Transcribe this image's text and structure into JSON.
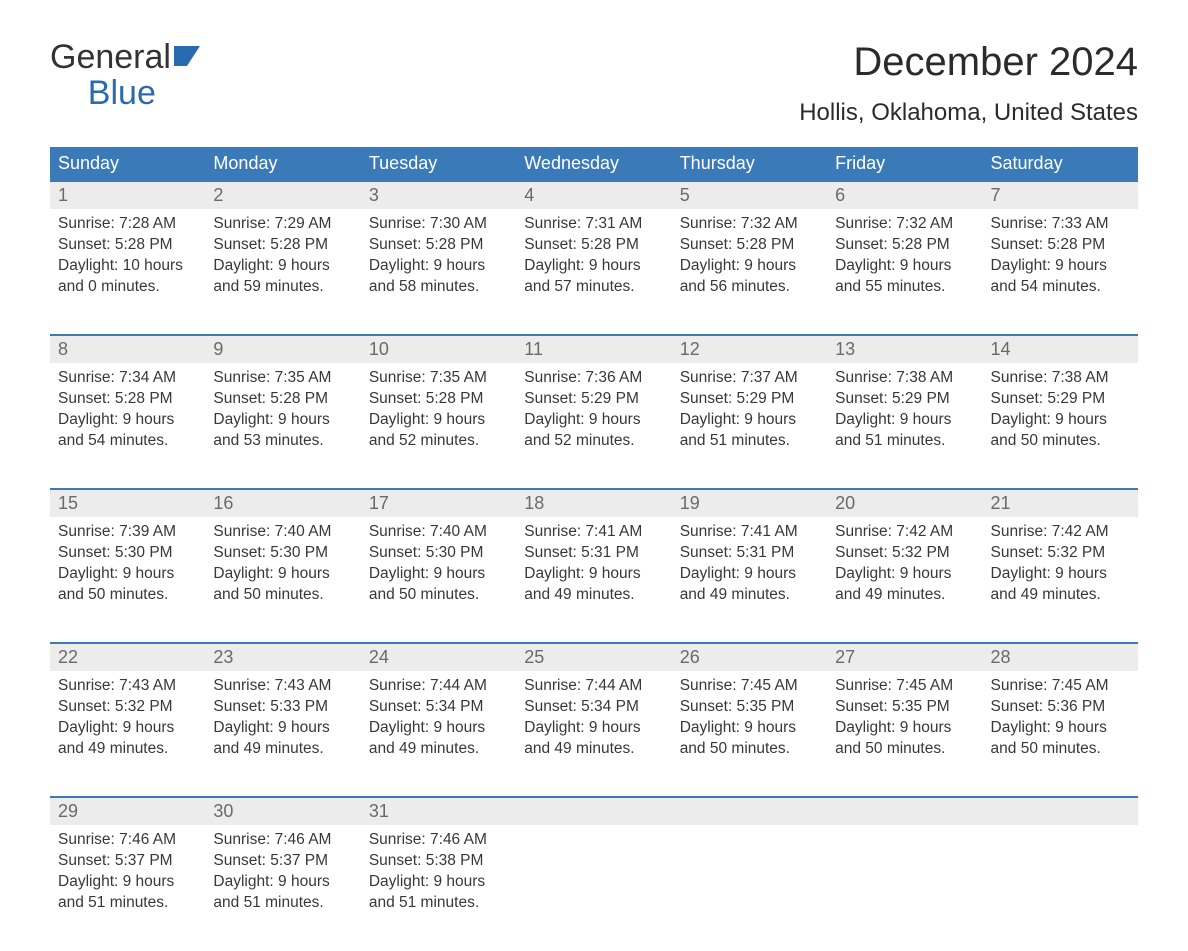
{
  "logo": {
    "word1": "General",
    "word2": "Blue"
  },
  "title": "December 2024",
  "location": "Hollis, Oklahoma, United States",
  "styling": {
    "header_bg": "#3b7ab8",
    "header_text_color": "#ffffff",
    "daynum_bg": "#ececec",
    "daynum_border_top": "#3b7ab8",
    "daynum_color": "#6a6a6a",
    "body_text_color": "#383838",
    "logo_accent": "#2a6bb0",
    "month_title_fontsize": 40,
    "location_fontsize": 24,
    "th_fontsize": 18,
    "cell_fontsize": 15.5
  },
  "day_headers": [
    "Sunday",
    "Monday",
    "Tuesday",
    "Wednesday",
    "Thursday",
    "Friday",
    "Saturday"
  ],
  "weeks": [
    [
      {
        "n": "1",
        "sunrise": "7:28 AM",
        "sunset": "5:28 PM",
        "dl1": "10 hours",
        "dl2": "0 minutes."
      },
      {
        "n": "2",
        "sunrise": "7:29 AM",
        "sunset": "5:28 PM",
        "dl1": "9 hours",
        "dl2": "59 minutes."
      },
      {
        "n": "3",
        "sunrise": "7:30 AM",
        "sunset": "5:28 PM",
        "dl1": "9 hours",
        "dl2": "58 minutes."
      },
      {
        "n": "4",
        "sunrise": "7:31 AM",
        "sunset": "5:28 PM",
        "dl1": "9 hours",
        "dl2": "57 minutes."
      },
      {
        "n": "5",
        "sunrise": "7:32 AM",
        "sunset": "5:28 PM",
        "dl1": "9 hours",
        "dl2": "56 minutes."
      },
      {
        "n": "6",
        "sunrise": "7:32 AM",
        "sunset": "5:28 PM",
        "dl1": "9 hours",
        "dl2": "55 minutes."
      },
      {
        "n": "7",
        "sunrise": "7:33 AM",
        "sunset": "5:28 PM",
        "dl1": "9 hours",
        "dl2": "54 minutes."
      }
    ],
    [
      {
        "n": "8",
        "sunrise": "7:34 AM",
        "sunset": "5:28 PM",
        "dl1": "9 hours",
        "dl2": "54 minutes."
      },
      {
        "n": "9",
        "sunrise": "7:35 AM",
        "sunset": "5:28 PM",
        "dl1": "9 hours",
        "dl2": "53 minutes."
      },
      {
        "n": "10",
        "sunrise": "7:35 AM",
        "sunset": "5:28 PM",
        "dl1": "9 hours",
        "dl2": "52 minutes."
      },
      {
        "n": "11",
        "sunrise": "7:36 AM",
        "sunset": "5:29 PM",
        "dl1": "9 hours",
        "dl2": "52 minutes."
      },
      {
        "n": "12",
        "sunrise": "7:37 AM",
        "sunset": "5:29 PM",
        "dl1": "9 hours",
        "dl2": "51 minutes."
      },
      {
        "n": "13",
        "sunrise": "7:38 AM",
        "sunset": "5:29 PM",
        "dl1": "9 hours",
        "dl2": "51 minutes."
      },
      {
        "n": "14",
        "sunrise": "7:38 AM",
        "sunset": "5:29 PM",
        "dl1": "9 hours",
        "dl2": "50 minutes."
      }
    ],
    [
      {
        "n": "15",
        "sunrise": "7:39 AM",
        "sunset": "5:30 PM",
        "dl1": "9 hours",
        "dl2": "50 minutes."
      },
      {
        "n": "16",
        "sunrise": "7:40 AM",
        "sunset": "5:30 PM",
        "dl1": "9 hours",
        "dl2": "50 minutes."
      },
      {
        "n": "17",
        "sunrise": "7:40 AM",
        "sunset": "5:30 PM",
        "dl1": "9 hours",
        "dl2": "50 minutes."
      },
      {
        "n": "18",
        "sunrise": "7:41 AM",
        "sunset": "5:31 PM",
        "dl1": "9 hours",
        "dl2": "49 minutes."
      },
      {
        "n": "19",
        "sunrise": "7:41 AM",
        "sunset": "5:31 PM",
        "dl1": "9 hours",
        "dl2": "49 minutes."
      },
      {
        "n": "20",
        "sunrise": "7:42 AM",
        "sunset": "5:32 PM",
        "dl1": "9 hours",
        "dl2": "49 minutes."
      },
      {
        "n": "21",
        "sunrise": "7:42 AM",
        "sunset": "5:32 PM",
        "dl1": "9 hours",
        "dl2": "49 minutes."
      }
    ],
    [
      {
        "n": "22",
        "sunrise": "7:43 AM",
        "sunset": "5:32 PM",
        "dl1": "9 hours",
        "dl2": "49 minutes."
      },
      {
        "n": "23",
        "sunrise": "7:43 AM",
        "sunset": "5:33 PM",
        "dl1": "9 hours",
        "dl2": "49 minutes."
      },
      {
        "n": "24",
        "sunrise": "7:44 AM",
        "sunset": "5:34 PM",
        "dl1": "9 hours",
        "dl2": "49 minutes."
      },
      {
        "n": "25",
        "sunrise": "7:44 AM",
        "sunset": "5:34 PM",
        "dl1": "9 hours",
        "dl2": "49 minutes."
      },
      {
        "n": "26",
        "sunrise": "7:45 AM",
        "sunset": "5:35 PM",
        "dl1": "9 hours",
        "dl2": "50 minutes."
      },
      {
        "n": "27",
        "sunrise": "7:45 AM",
        "sunset": "5:35 PM",
        "dl1": "9 hours",
        "dl2": "50 minutes."
      },
      {
        "n": "28",
        "sunrise": "7:45 AM",
        "sunset": "5:36 PM",
        "dl1": "9 hours",
        "dl2": "50 minutes."
      }
    ],
    [
      {
        "n": "29",
        "sunrise": "7:46 AM",
        "sunset": "5:37 PM",
        "dl1": "9 hours",
        "dl2": "51 minutes."
      },
      {
        "n": "30",
        "sunrise": "7:46 AM",
        "sunset": "5:37 PM",
        "dl1": "9 hours",
        "dl2": "51 minutes."
      },
      {
        "n": "31",
        "sunrise": "7:46 AM",
        "sunset": "5:38 PM",
        "dl1": "9 hours",
        "dl2": "51 minutes."
      },
      null,
      null,
      null,
      null
    ]
  ],
  "labels": {
    "sunrise_prefix": "Sunrise: ",
    "sunset_prefix": "Sunset: ",
    "daylight_prefix": "Daylight: ",
    "and_word": "and "
  }
}
